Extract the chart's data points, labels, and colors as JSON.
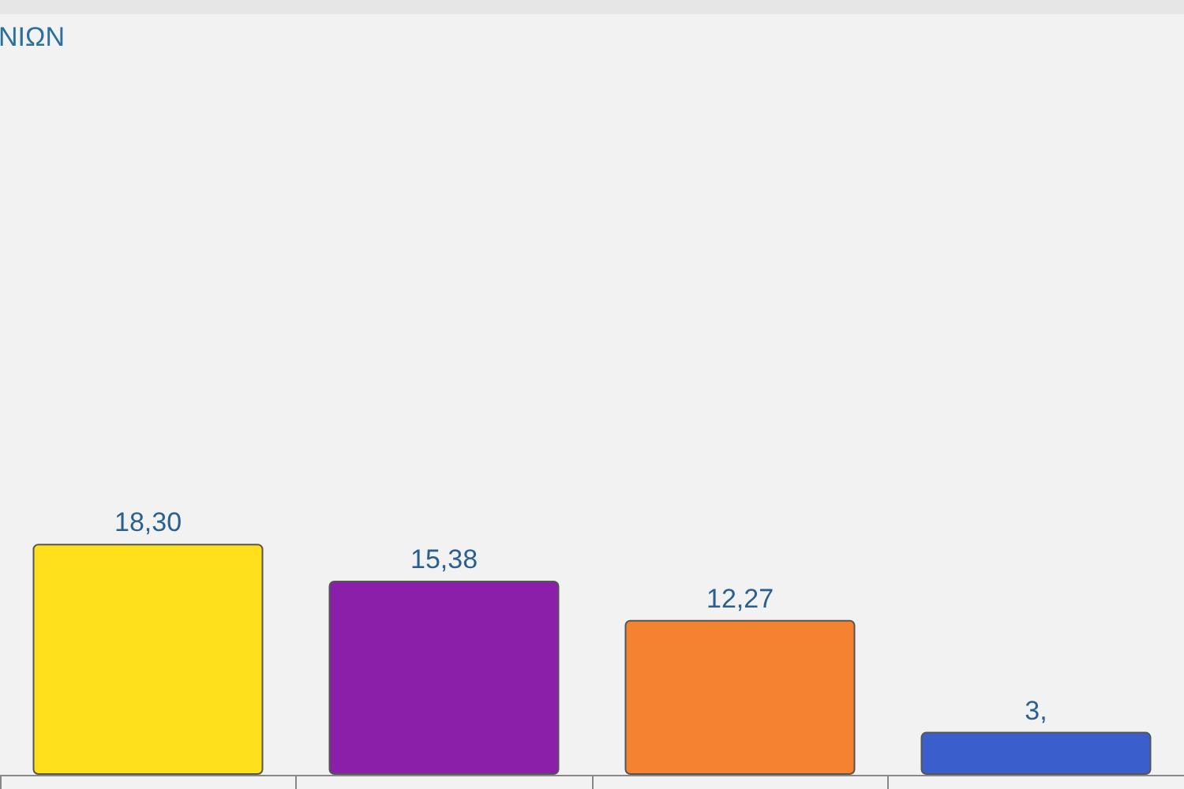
{
  "chart_data": {
    "type": "bar",
    "title": "ΝΙΩΝ",
    "categories": [
      null,
      null,
      null,
      null
    ],
    "values": [
      18.3,
      15.38,
      12.27,
      3.4
    ],
    "colors": [
      "#ffe01a",
      "#8b1fa9",
      "#f58231",
      "#3a5fcd"
    ],
    "value_labels": [
      "18,30",
      "15,38",
      "12,27",
      "3,"
    ]
  }
}
